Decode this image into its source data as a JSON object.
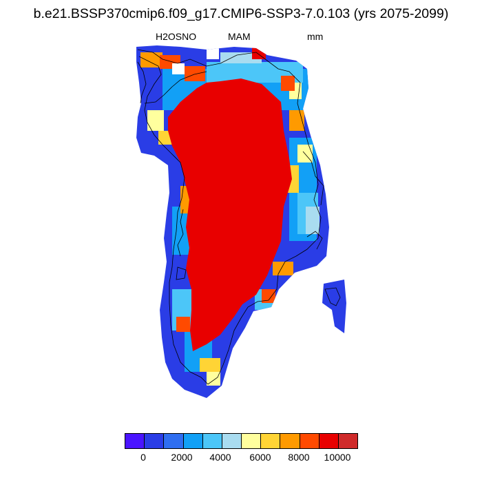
{
  "header": {
    "title": "b.e21.BSSP370cmip6.f09_g17.CMIP6-SSP3-7.0.103 (yrs 2075-2099)",
    "variable": "H2OSNO",
    "season": "MAM",
    "units": "mm"
  },
  "map": {
    "region": "Greenland",
    "shading": "H2OSNO (mm)",
    "colors": {
      "ice_sheet_interior": "#e80000",
      "outer_coast": "#2a3de6",
      "outline": "#000000"
    }
  },
  "colorbar": {
    "colors": [
      "#4a14ff",
      "#2a3de6",
      "#2f6ef0",
      "#12a0f6",
      "#4cc6f8",
      "#a9dcf0",
      "#ffff9e",
      "#ffd435",
      "#ff9a00",
      "#ff4a00",
      "#e80000",
      "#cf2a2a"
    ],
    "labels": [
      "0",
      "2000",
      "4000",
      "6000",
      "8000",
      "10000"
    ]
  }
}
